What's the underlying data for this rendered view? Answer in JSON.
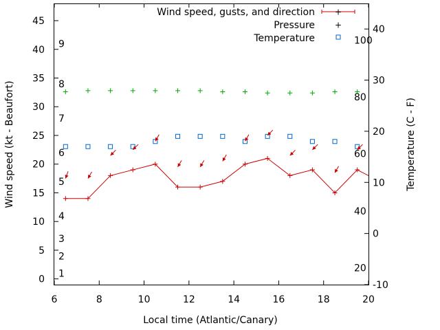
{
  "chart_data": {
    "type": "line",
    "xlabel": "Local time (Atlantic/Canary)",
    "ylabel": "Wind speed (kt - Beaufort)",
    "y2label": "Temperature (C - F)",
    "xlim": [
      6,
      20
    ],
    "ylim": [
      -1,
      48
    ],
    "y2lim": [
      -10,
      45
    ],
    "x_ticks": [
      6,
      8,
      10,
      12,
      14,
      16,
      18,
      20
    ],
    "y_ticks": [
      0,
      5,
      10,
      15,
      20,
      25,
      30,
      35,
      40,
      45
    ],
    "y2_ticks": [
      -10,
      0,
      10,
      20,
      30,
      40
    ],
    "beaufort_labels": [
      {
        "label": "1",
        "kt": 1
      },
      {
        "label": "2",
        "kt": 4
      },
      {
        "label": "3",
        "kt": 7
      },
      {
        "label": "4",
        "kt": 11
      },
      {
        "label": "5",
        "kt": 17
      },
      {
        "label": "6",
        "kt": 22
      },
      {
        "label": "7",
        "kt": 28
      },
      {
        "label": "8",
        "kt": 34
      },
      {
        "label": "9",
        "kt": 41
      }
    ],
    "fahrenheit_labels": [
      {
        "label": "20",
        "c": -6.7
      },
      {
        "label": "40",
        "c": 4.4
      },
      {
        "label": "60",
        "c": 15.6
      },
      {
        "label": "80",
        "c": 26.7
      },
      {
        "label": "100",
        "c": 37.8
      }
    ],
    "legend": {
      "position": "top-right",
      "entries": [
        "Wind speed, gusts, and direction",
        "Pressure",
        "Temperature"
      ]
    },
    "colors": {
      "wind": "#cc0000",
      "pressure": "#00aa00",
      "temperature": "#0066cc"
    },
    "series": [
      {
        "name": "Wind speed, gusts, and direction",
        "x": [
          6.5,
          7.5,
          8.5,
          9.5,
          10.5,
          11.5,
          12.5,
          13.5,
          14.5,
          15.5,
          16.5,
          17.5,
          18.5,
          19.5,
          20
        ],
        "values": [
          14,
          14,
          18,
          19,
          20,
          16,
          16,
          17,
          20,
          21,
          18,
          19,
          15,
          19,
          18
        ]
      },
      {
        "name": "Pressure",
        "x": [
          6.5,
          7.5,
          8.5,
          9.5,
          10.5,
          11.5,
          12.5,
          13.5,
          14.5,
          15.5,
          16.5,
          17.5,
          18.5,
          19.5
        ],
        "values": [
          32.6,
          32.8,
          32.8,
          32.8,
          32.8,
          32.8,
          32.8,
          32.6,
          32.6,
          32.4,
          32.4,
          32.4,
          32.6,
          32.6
        ]
      },
      {
        "name": "Temperature",
        "axis": "y2",
        "x": [
          6.5,
          7.5,
          8.5,
          9.5,
          10.5,
          11.5,
          12.5,
          13.5,
          14.5,
          15.5,
          16.5,
          17.5,
          18.5,
          19.5
        ],
        "values": [
          17,
          17,
          17,
          17,
          18,
          19,
          19,
          19,
          18,
          19,
          19,
          18,
          18,
          17
        ]
      }
    ],
    "wind_direction": {
      "x": [
        6.5,
        7.5,
        8.5,
        9.5,
        10.5,
        11.5,
        12.5,
        13.5,
        14.5,
        15.5,
        16.5,
        17.5,
        18.5,
        19.5
      ],
      "speed_kt": [
        17.5,
        17.5,
        21.5,
        22.5,
        24,
        19.5,
        19.5,
        20.5,
        24,
        25,
        21.5,
        22.5,
        18.5,
        22.5
      ],
      "direction_deg": [
        20,
        30,
        45,
        45,
        30,
        30,
        30,
        30,
        30,
        45,
        45,
        45,
        30,
        45
      ]
    }
  }
}
